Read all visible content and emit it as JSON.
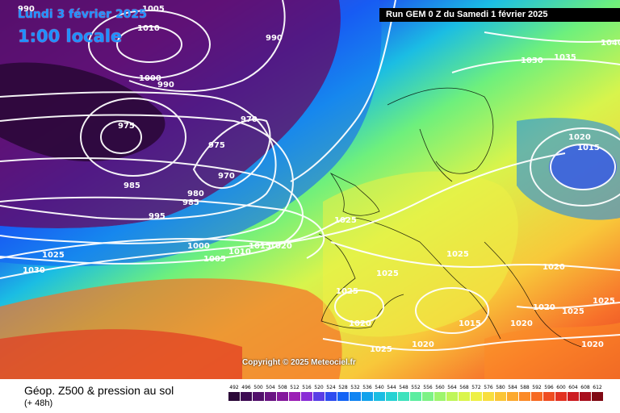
{
  "header": {
    "date_text": "Lundi 3 février 2025",
    "time_text": "1:00 locale",
    "run_text": "Run GEM 0 Z du Samedi 1 février 2025"
  },
  "map": {
    "copyright": "Copyright © 2025 Meteociel.fr",
    "isobar_labels": [
      "990",
      "1005",
      "1010",
      "990",
      "1000",
      "990",
      "975",
      "970",
      "975",
      "970",
      "985",
      "980",
      "985",
      "995",
      "1000",
      "1005",
      "1010",
      "1015",
      "1020",
      "1025",
      "1030",
      "1025",
      "1030",
      "1035",
      "1040",
      "1020",
      "1015",
      "1025",
      "1025",
      "1025",
      "1020",
      "1020",
      "1015",
      "1020",
      "1025",
      "1020",
      "1025",
      "1020",
      "1020",
      "1025"
    ]
  },
  "footer": {
    "title": "Géop. Z500 & pression au sol",
    "subtitle": "(+ 48h)"
  },
  "scale": {
    "labels": [
      "492",
      "496",
      "500",
      "504",
      "508",
      "512",
      "516",
      "520",
      "524",
      "528",
      "532",
      "536",
      "540",
      "544",
      "548",
      "552",
      "556",
      "560",
      "564",
      "568",
      "572",
      "576",
      "580",
      "584",
      "588",
      "592",
      "596",
      "600",
      "604",
      "608",
      "612"
    ],
    "colors": [
      "#2b0838",
      "#3d0a52",
      "#52106b",
      "#6a1483",
      "#84189c",
      "#9b1fb5",
      "#8a2cd6",
      "#5a3ee6",
      "#2d4cf0",
      "#1464f5",
      "#1184f2",
      "#12a2ec",
      "#1bbde3",
      "#27d2d3",
      "#3fe2bd",
      "#5ceda0",
      "#7df285",
      "#9ef56d",
      "#bff65a",
      "#daf54c",
      "#eef045",
      "#f8de3d",
      "#fbc536",
      "#fca92e",
      "#fb8a27",
      "#f76a22",
      "#ef4d21",
      "#e23222",
      "#cc1c22",
      "#a80f1d",
      "#800914"
    ]
  }
}
